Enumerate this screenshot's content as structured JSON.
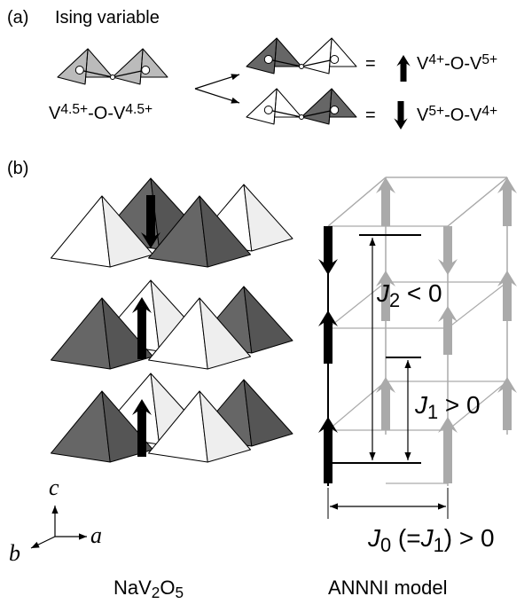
{
  "panel_a": {
    "label": "(a)",
    "title": "Ising variable",
    "center_label": [
      {
        "t": "V"
      },
      {
        "sup": "4.5+"
      },
      {
        "t": "-O-V"
      },
      {
        "sup": "4.5+"
      }
    ],
    "equals": [
      "=",
      "="
    ],
    "up_label": [
      {
        "t": "V"
      },
      {
        "sup": "4+"
      },
      {
        "t": "-O-V"
      },
      {
        "sup": "5+"
      }
    ],
    "down_label": [
      {
        "t": "V"
      },
      {
        "sup": "5+"
      },
      {
        "t": "-O-V"
      },
      {
        "sup": "4+"
      }
    ]
  },
  "panel_b": {
    "label": "(b)",
    "axes": {
      "c": "c",
      "a": "a",
      "b": "b"
    },
    "left_caption": [
      {
        "t": "NaV"
      },
      {
        "sub": "2"
      },
      {
        "t": "O"
      },
      {
        "sub": "5"
      }
    ],
    "right_caption": [
      {
        "t": "ANNNI model"
      }
    ],
    "j2": [
      {
        "i": "J"
      },
      {
        "sub": "2"
      },
      {
        "t": " < 0"
      }
    ],
    "j1": [
      {
        "i": "J"
      },
      {
        "sub": "1"
      },
      {
        "t": " > 0"
      }
    ],
    "j0": [
      {
        "i": "J"
      },
      {
        "sub": "0"
      },
      {
        "t": " (="
      },
      {
        "i": "J"
      },
      {
        "sub": "1"
      },
      {
        "t": ") > 0"
      }
    ]
  }
}
